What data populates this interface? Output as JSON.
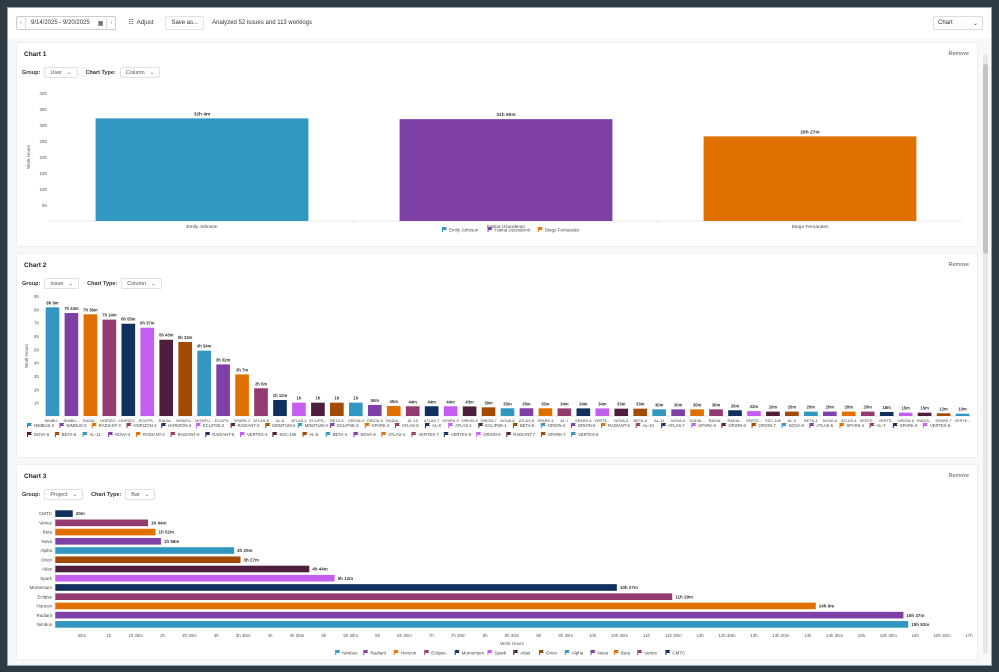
{
  "toolbar": {
    "prev_label": "‹",
    "date_range": "9/14/2025 - 9/20/2025",
    "calendar_icon": "▦",
    "next_label": "›",
    "adjust_icon": "☷",
    "adjust_label": "Adjust",
    "save_label": "Save as...",
    "status": "Analyzed 52 issues and 113 worklogs",
    "view_select": "Chart",
    "view_chevron": "⌄"
  },
  "charts": [
    {
      "title": "Chart 1",
      "remove_label": "Remove",
      "group_label": "Group:",
      "group_value": "User",
      "type_label": "Chart Type:",
      "type_value": "Column",
      "chevron": "⌄"
    },
    {
      "title": "Chart 2",
      "remove_label": "Remove",
      "group_label": "Group:",
      "group_value": "Issue",
      "type_label": "Chart Type:",
      "type_value": "Column",
      "chevron": "⌄"
    },
    {
      "title": "Chart 3",
      "remove_label": "Remove",
      "group_label": "Group:",
      "group_value": "Project",
      "type_label": "Chart Type:",
      "type_value": "Bar",
      "chevron": "⌄"
    }
  ],
  "chart_data": [
    {
      "type": "bar",
      "orientation": "vertical",
      "title": "Chart 1",
      "xlabel": "",
      "ylabel": "Work Hours",
      "ylim": [
        0,
        40
      ],
      "yticks": [
        "5h",
        "10h",
        "15h",
        "20h",
        "25h",
        "30h",
        "35h",
        "40h"
      ],
      "categories": [
        "Emily Johnson",
        "Fatma Uzundemir",
        "Diego Fernandez"
      ],
      "values": [
        32.07,
        31.83,
        26.45
      ],
      "labels": [
        "32h 4m",
        "31h 50m",
        "26h 27m"
      ],
      "colors": [
        "#3197c0",
        "#7e3fa6",
        "#e07000"
      ],
      "legend": [
        "Emily Johnson",
        "Fatma Uzundemir",
        "Diego Fernandez"
      ],
      "legend_position": "bottom"
    },
    {
      "type": "bar",
      "orientation": "vertical",
      "title": "Chart 2",
      "ylabel": "Work Hours",
      "ylim": [
        0,
        9
      ],
      "yticks": [
        "1h",
        "2h",
        "3h",
        "4h",
        "5h",
        "6h",
        "7h",
        "8h",
        "9h"
      ],
      "categories": [
        "NIMBUS-3",
        "NIMBUS-2",
        "RADIANT-3",
        "HORIZON-2",
        "HORIZON-3",
        "ECLIPSE-2",
        "RADIANT-2",
        "MOMTUM-2",
        "MOMTUM-3",
        "ECLIPSE-3",
        "SPARK-2",
        "ATLAS-6",
        "AL-8",
        "ATLAS-1",
        "ECLIPSE-1",
        "BETA-5",
        "ORION-4",
        "ORION-5",
        "RADIANT-5",
        "AL-10",
        "ATLAS-7",
        "SPARK-5",
        "ORION-8",
        "ORION-7",
        "NOVA-8",
        "ATLAS-5",
        "SPARK-4",
        "AL-7",
        "SPARK-6",
        "VERTEX-5",
        "NOVA-5",
        "BETA-8",
        "AL-11",
        "NOVA-4",
        "RADIANT-4",
        "RADIANT-6",
        "RADIANT-8",
        "VERTEX-4",
        "SSC-106",
        "AL-9",
        "BETA-4",
        "NOVA-6",
        "ATLAS-4",
        "VERTEX-7",
        "VERTEX-6",
        "ORION-6",
        "RADIANT-7",
        "SPARK-7",
        "VERTEX-8"
      ],
      "tick_labels": [
        "NIMBU...",
        "NIMBU...",
        "RADIA...",
        "HORIZO...",
        "HORIZO...",
        "ECLIPS...",
        "RADIA...",
        "MOMTU...",
        "MOMTU...",
        "ECLIPS...",
        "SPARK-2",
        "ATLAS-6",
        "AL-8",
        "ATLAS-1",
        "ECLIPS...",
        "BETA-5",
        "ORION-4",
        "ORION-5",
        "RADIA...",
        "AL-10",
        "ATLAS-7",
        "SPARK-5",
        "ORION-8",
        "ORION-7",
        "NOVA-8",
        "ATLAS-5",
        "SPARK-4",
        "AL-7",
        "SPARK-6",
        "VERTE...",
        "NOVA-5",
        "BETA-8",
        "AL-11",
        "NOVA-4",
        "RADIA...",
        "RADIA...",
        "RADIA...",
        "VERTE...",
        "SSC-106",
        "AL-9",
        "BETA-4",
        "NOVA-6",
        "ATLAS-4",
        "VERTE...",
        "VERTE...",
        "ORION-6",
        "RADIA...",
        "SPARK-7",
        "VERTE..."
      ],
      "labels": [
        "8h 9m",
        "7h 43m",
        "7h 38m",
        "7h 14m",
        "6h 55m",
        "6h 37m",
        "5h 43m",
        "5h 33m",
        "4h 54m",
        "3h 52m",
        "3h 7m",
        "2h 5m",
        "1h 12m",
        "1h",
        "1h",
        "1h",
        "1h",
        "50m",
        "45m",
        "44m",
        "44m",
        "44m",
        "43m",
        "39m",
        "35m",
        "35m",
        "35m",
        "34m",
        "34m",
        "34m",
        "33m",
        "33m",
        "30m",
        "30m",
        "30m",
        "30m",
        "26m",
        "22m",
        "20m",
        "20m",
        "20m",
        "20m",
        "20m",
        "20m",
        "18m",
        "15m",
        "15m",
        "12m",
        "10m"
      ],
      "values": [
        8.15,
        7.72,
        7.63,
        7.23,
        6.92,
        6.62,
        5.72,
        5.55,
        4.9,
        3.87,
        3.12,
        2.08,
        1.2,
        1,
        1,
        1,
        1,
        0.83,
        0.75,
        0.73,
        0.73,
        0.73,
        0.72,
        0.65,
        0.58,
        0.58,
        0.58,
        0.57,
        0.57,
        0.57,
        0.55,
        0.55,
        0.5,
        0.5,
        0.5,
        0.5,
        0.43,
        0.37,
        0.33,
        0.33,
        0.33,
        0.33,
        0.33,
        0.33,
        0.3,
        0.25,
        0.25,
        0.2,
        0.17
      ],
      "palette": [
        "#3197c0",
        "#7e3fa6",
        "#e07000",
        "#933a6e",
        "#11305e",
        "#c35ef0",
        "#4d1f3c",
        "#a04b00"
      ],
      "legend_position": "bottom"
    },
    {
      "type": "bar",
      "orientation": "horizontal",
      "title": "Chart 3",
      "xlabel": "Work Hours",
      "xlim": [
        0,
        17
      ],
      "xticks": [
        "30m",
        "1h",
        "1h 30m",
        "2h",
        "2h 30m",
        "3h",
        "3h 30m",
        "4h",
        "4h 30m",
        "5h",
        "5h 30m",
        "6h",
        "6h 30m",
        "7h",
        "7h 30m",
        "8h",
        "8h 30m",
        "9h",
        "9h 30m",
        "10h",
        "10h 30m",
        "11h",
        "11h 30m",
        "12h",
        "12h 30m",
        "13h",
        "13h 30m",
        "14h",
        "14h 30m",
        "15h",
        "15h 30m",
        "16h",
        "16h 30m",
        "17h"
      ],
      "categories": [
        "CMTC",
        "Vertex",
        "Beta",
        "Nova",
        "Alpha",
        "Orion",
        "Atlas",
        "Spark",
        "Momentum",
        "Eclipse",
        "Horizon",
        "Radiant",
        "Nimbus"
      ],
      "labels": [
        "20m",
        "1h 44m",
        "1h 52m",
        "1h 58m",
        "3h 20m",
        "3h 27m",
        "4h 44m",
        "5h 12m",
        "10h 27m",
        "11h 29m",
        "14h 9m",
        "15h 47m",
        "15h 52m"
      ],
      "values": [
        0.33,
        1.73,
        1.87,
        1.97,
        3.33,
        3.45,
        4.73,
        5.2,
        10.45,
        11.48,
        14.15,
        15.78,
        15.87
      ],
      "colors": [
        "#11305e",
        "#933a6e",
        "#e07000",
        "#7e3fa6",
        "#3197c0",
        "#a04b00",
        "#4d1f3c",
        "#c35ef0",
        "#11305e",
        "#933a6e",
        "#e07000",
        "#7e3fa6",
        "#3197c0"
      ],
      "legend": [
        "Nimbus",
        "Radiant",
        "Horizon",
        "Eclipse",
        "Momentum",
        "Spark",
        "Atlas",
        "Orion",
        "Alpha",
        "Nova",
        "Beta",
        "Vertex",
        "CMTC"
      ],
      "legend_position": "bottom"
    }
  ]
}
